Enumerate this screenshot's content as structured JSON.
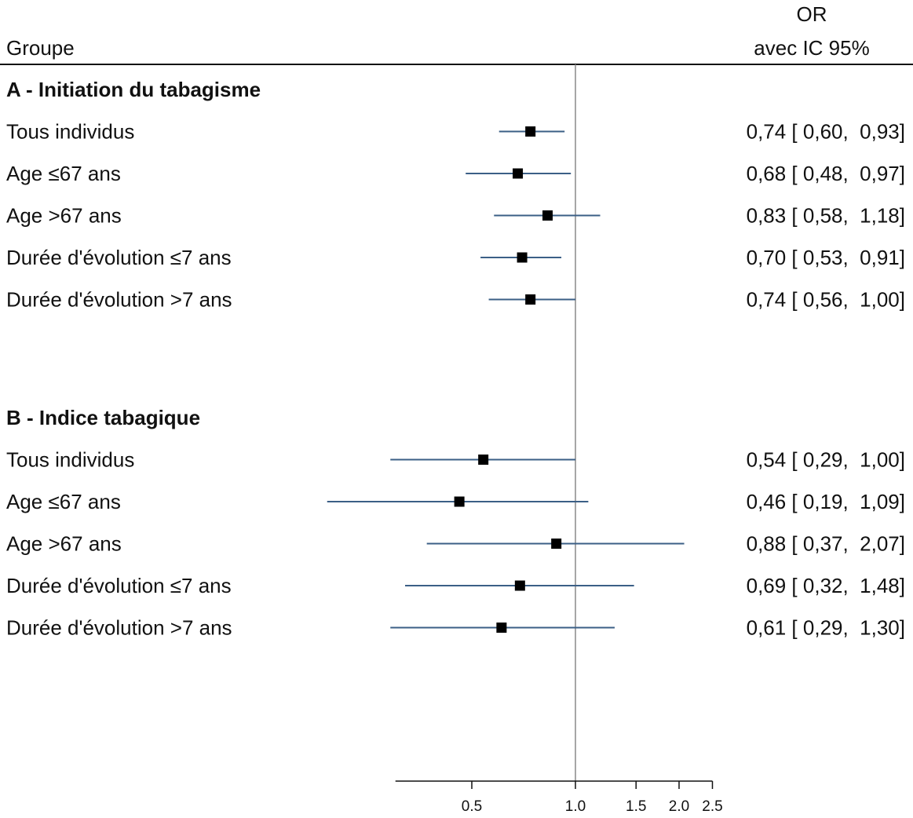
{
  "header": {
    "group_label": "Groupe",
    "or_label": "OR",
    "ci_label": "avec IC 95%"
  },
  "colors": {
    "ci_line": "#3b5f86",
    "marker": "#000000",
    "reference_line": "#888888",
    "text": "#111111"
  },
  "chart_data": {
    "type": "scatter",
    "subtype": "forest-plot",
    "x_scale": "log",
    "reference_value": 1.0,
    "xlim": [
      0.3,
      2.5
    ],
    "x_ticks": [
      {
        "value": 0.5,
        "label": "0.5"
      },
      {
        "value": 1.0,
        "label": "1.0"
      },
      {
        "value": 1.5,
        "label": "1.5"
      },
      {
        "value": 2.0,
        "label": "2.0"
      },
      {
        "value": 2.5,
        "label": "2.5"
      }
    ],
    "sections": [
      {
        "title": "A - Initiation du tabagisme",
        "rows": [
          {
            "label": "Tous individus",
            "or": 0.74,
            "lo": 0.6,
            "hi": 0.93,
            "text": "0,74 [ 0,60,  0,93]"
          },
          {
            "label": "Age ≤67 ans",
            "or": 0.68,
            "lo": 0.48,
            "hi": 0.97,
            "text": "0,68 [ 0,48,  0,97]"
          },
          {
            "label": "Age >67 ans",
            "or": 0.83,
            "lo": 0.58,
            "hi": 1.18,
            "text": "0,83 [ 0,58,  1,18]"
          },
          {
            "label": "Durée d'évolution ≤7 ans",
            "or": 0.7,
            "lo": 0.53,
            "hi": 0.91,
            "text": "0,70 [ 0,53,  0,91]"
          },
          {
            "label": "Durée d'évolution >7 ans",
            "or": 0.74,
            "lo": 0.56,
            "hi": 1.0,
            "text": "0,74 [ 0,56,  1,00]"
          }
        ]
      },
      {
        "title": "B - Indice tabagique",
        "rows": [
          {
            "label": "Tous individus",
            "or": 0.54,
            "lo": 0.29,
            "hi": 1.0,
            "text": "0,54 [ 0,29,  1,00]"
          },
          {
            "label": "Age ≤67 ans",
            "or": 0.46,
            "lo": 0.19,
            "hi": 1.09,
            "text": "0,46 [ 0,19,  1,09]"
          },
          {
            "label": "Age >67 ans",
            "or": 0.88,
            "lo": 0.37,
            "hi": 2.07,
            "text": "0,88 [ 0,37,  2,07]"
          },
          {
            "label": "Durée d'évolution ≤7 ans",
            "or": 0.69,
            "lo": 0.32,
            "hi": 1.48,
            "text": "0,69 [ 0,32,  1,48]"
          },
          {
            "label": "Durée d'évolution >7 ans",
            "or": 0.61,
            "lo": 0.29,
            "hi": 1.3,
            "text": "0,61 [ 0,29,  1,30]"
          }
        ]
      }
    ]
  }
}
